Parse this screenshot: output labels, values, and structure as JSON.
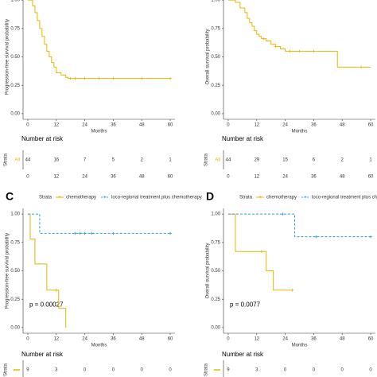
{
  "chart_data": [
    {
      "type": "line",
      "ylabel": "Progression-free survival probability",
      "xlabel": "Months",
      "xlim": [
        -2,
        62
      ],
      "ylim": [
        -0.05,
        1.05
      ],
      "xticks": [
        0,
        12,
        24,
        36,
        48,
        60
      ],
      "yticks": [
        {
          "value": 0,
          "label": "0.00"
        },
        {
          "value": 0.25,
          "label": "0.25"
        },
        {
          "value": 0.5,
          "label": "0.50"
        },
        {
          "value": 0.75,
          "label": "0.75"
        },
        {
          "value": 1,
          "label": "1.00"
        }
      ],
      "series": [
        {
          "name": "All",
          "color": "#e7b800",
          "x": [
            0,
            2,
            3,
            4,
            5,
            6,
            7,
            8,
            9,
            10,
            11,
            12,
            14,
            16,
            17,
            60
          ],
          "values": [
            1,
            0.95,
            0.89,
            0.82,
            0.75,
            0.68,
            0.61,
            0.55,
            0.5,
            0.45,
            0.41,
            0.36,
            0.34,
            0.32,
            0.31,
            0.31
          ],
          "censor_x": [
            18,
            20,
            24,
            30,
            36,
            48,
            60
          ],
          "censor_values": [
            0.31,
            0.31,
            0.31,
            0.31,
            0.31,
            0.31,
            0.31
          ]
        }
      ],
      "risk_table": {
        "title": "Number at risk",
        "ylabel": "Strata",
        "rows": [
          [
            44,
            16,
            7,
            5,
            2,
            1
          ]
        ]
      }
    },
    {
      "type": "line",
      "ylabel": "Overall survival probability",
      "xlabel": "Months",
      "xlim": [
        -2,
        62
      ],
      "ylim": [
        -0.05,
        1.05
      ],
      "xticks": [
        0,
        12,
        24,
        36,
        48,
        60
      ],
      "yticks": [
        {
          "value": 0,
          "label": "0.00"
        },
        {
          "value": 0.25,
          "label": "0.25"
        },
        {
          "value": 0.5,
          "label": "0.50"
        },
        {
          "value": 0.75,
          "label": "0.75"
        },
        {
          "value": 1,
          "label": "1.00"
        }
      ],
      "series": [
        {
          "name": "All",
          "color": "#e7b800",
          "x": [
            0,
            3,
            5,
            7,
            8,
            9,
            10,
            11,
            12,
            13,
            14,
            16,
            18,
            20,
            22,
            24,
            46,
            60
          ],
          "values": [
            1,
            0.98,
            0.93,
            0.89,
            0.84,
            0.8,
            0.77,
            0.73,
            0.7,
            0.68,
            0.66,
            0.64,
            0.61,
            0.59,
            0.57,
            0.55,
            0.41,
            0.41
          ],
          "censor_x": [
            15,
            20,
            26,
            30,
            36,
            56
          ],
          "censor_values": [
            0.66,
            0.59,
            0.55,
            0.55,
            0.55,
            0.41
          ]
        }
      ],
      "risk_table": {
        "title": "Number at risk",
        "ylabel": "Strata",
        "rows": [
          [
            44,
            29,
            15,
            6,
            2,
            1
          ]
        ]
      }
    },
    {
      "type": "line",
      "title": "C",
      "legend_title": "Strata",
      "ylabel": "Progression-free survival probability",
      "xlabel": "Months",
      "annotation": "p = 0.00027",
      "xlim": [
        -2,
        62
      ],
      "ylim": [
        -0.05,
        1.05
      ],
      "xticks": [
        0,
        12,
        24,
        36,
        48,
        60
      ],
      "yticks": [
        {
          "value": 0,
          "label": "0.00"
        },
        {
          "value": 0.25,
          "label": "0.25"
        },
        {
          "value": 0.5,
          "label": "0.50"
        },
        {
          "value": 0.75,
          "label": "0.75"
        },
        {
          "value": 1,
          "label": "1.00"
        }
      ],
      "series": [
        {
          "name": "chemotherapy",
          "color": "#e7b800",
          "x": [
            0,
            1,
            3,
            8,
            13,
            16
          ],
          "values": [
            1,
            0.78,
            0.56,
            0.33,
            0.17,
            0
          ],
          "censor_x": [
            12
          ],
          "censor_values": [
            0.33
          ]
        },
        {
          "name": "loco-regional treatment plus chemotherapy",
          "color": "#2e9fdf",
          "dashed": true,
          "x": [
            0,
            5,
            60
          ],
          "values": [
            1,
            0.83,
            0.83
          ],
          "censor_x": [
            20,
            22,
            24,
            27,
            36,
            60
          ],
          "censor_values": [
            0.83,
            0.83,
            0.83,
            0.83,
            0.83,
            0.83
          ]
        }
      ],
      "risk_table": {
        "title": "Number at risk",
        "ylabel": "Strata",
        "rows": [
          [
            9,
            3,
            0,
            0,
            0,
            0
          ]
        ]
      }
    },
    {
      "type": "line",
      "title": "D",
      "legend_title": "Strata",
      "ylabel": "Overall survival probability",
      "xlabel": "Months",
      "annotation": "p = 0.0077",
      "xlim": [
        -2,
        62
      ],
      "ylim": [
        -0.05,
        1.05
      ],
      "xticks": [
        0,
        12,
        24,
        36,
        48,
        60
      ],
      "yticks": [
        {
          "value": 0,
          "label": "0.00"
        },
        {
          "value": 0.25,
          "label": "0.25"
        },
        {
          "value": 0.5,
          "label": "0.50"
        },
        {
          "value": 0.75,
          "label": "0.75"
        },
        {
          "value": 1,
          "label": "1.00"
        }
      ],
      "series": [
        {
          "name": "chemotherapy",
          "color": "#e7b800",
          "x": [
            0,
            3,
            16,
            19,
            27
          ],
          "values": [
            1,
            0.67,
            0.5,
            0.33,
            0.33
          ],
          "censor_x": [
            14,
            27
          ],
          "censor_values": [
            0.67,
            0.33
          ]
        },
        {
          "name": "loco-regional treatment plus chemotherapy",
          "color": "#2e9fdf",
          "dashed": true,
          "x": [
            0,
            28,
            60
          ],
          "values": [
            1,
            0.8,
            0.8
          ],
          "censor_x": [
            23,
            37,
            60
          ],
          "censor_values": [
            1,
            0.8,
            0.8
          ]
        }
      ],
      "risk_table": {
        "title": "Number at risk",
        "ylabel": "Strata",
        "rows": [
          [
            9,
            3,
            0,
            0,
            0,
            0
          ]
        ]
      }
    }
  ]
}
